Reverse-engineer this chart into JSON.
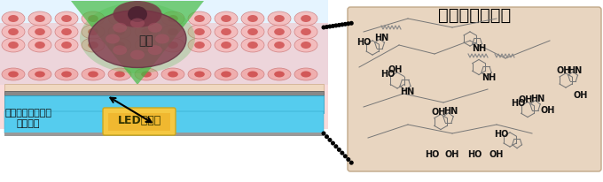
{
  "title_right": "ポリドーパミン",
  "label_tumor": "腫瘍",
  "label_led": "LEDチップ",
  "label_silicon": "シリコーンゴム製\nナノ薄膜",
  "bg_color": "#ffffff",
  "right_panel_bg": "#e8d5c0",
  "right_panel_border": "#c0a888",
  "skin_color": "#f5b8b8",
  "cell_inner": "#cc4444",
  "tumor_color": "#884455",
  "led_color": "#f5c842",
  "device_blue": "#55ccee",
  "green_light": "#44bb44",
  "light_beam_top": "#aaddff",
  "dotted_line_color": "#222222",
  "chem_line_color": "#666666",
  "chem_text_color": "#111111",
  "title_fontsize": 14,
  "label_fontsize": 9,
  "chem_fontsize": 7
}
